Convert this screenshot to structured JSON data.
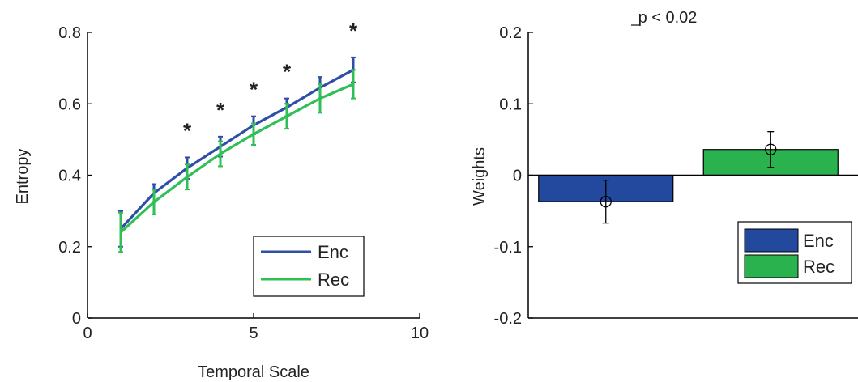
{
  "chart_data": [
    {
      "type": "line",
      "xlabel": "Temporal Scale",
      "ylabel": "Entropy",
      "xlim": [
        0,
        10
      ],
      "ylim": [
        0,
        0.8
      ],
      "xticks": [
        "0",
        "5",
        "10"
      ],
      "yticks": [
        "0",
        "0.2",
        "0.4",
        "0.6",
        "0.8"
      ],
      "x": [
        1,
        2,
        3,
        4,
        5,
        6,
        7,
        8
      ],
      "series": [
        {
          "name": "Enc",
          "color": "#2e4fa6",
          "values": [
            0.25,
            0.35,
            0.42,
            0.48,
            0.54,
            0.59,
            0.645,
            0.695
          ],
          "errors": [
            0.05,
            0.025,
            0.03,
            0.028,
            0.025,
            0.025,
            0.03,
            0.035
          ]
        },
        {
          "name": "Rec",
          "color": "#2fbf55",
          "values": [
            0.24,
            0.325,
            0.395,
            0.46,
            0.515,
            0.565,
            0.615,
            0.655
          ],
          "errors": [
            0.055,
            0.035,
            0.035,
            0.035,
            0.03,
            0.035,
            0.04,
            0.04
          ]
        }
      ],
      "significance": {
        "marker": "*",
        "x": [
          3,
          4,
          5,
          6,
          8
        ]
      },
      "legend": {
        "placement": "bottom-right",
        "items": [
          "Enc",
          "Rec"
        ]
      }
    },
    {
      "type": "bar",
      "title": "p < 0.02",
      "ylabel": "Weights",
      "ylim": [
        -0.2,
        0.2
      ],
      "yticks": [
        "-0.2",
        "-0.1",
        "0",
        "0.1",
        "0.2"
      ],
      "categories": [
        "Enc",
        "Rec"
      ],
      "values": [
        -0.037,
        0.036
      ],
      "errors": [
        0.03,
        0.025
      ],
      "colors": [
        "#23499e",
        "#29b24d"
      ],
      "legend": {
        "placement": "bottom-right",
        "items": [
          "Enc",
          "Rec"
        ]
      }
    }
  ]
}
